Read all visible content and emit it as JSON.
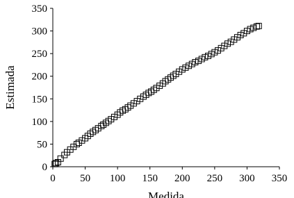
{
  "chart_data": {
    "type": "scatter",
    "x_label": "Medida",
    "y_label": "Estimada",
    "x": [
      3,
      5,
      8,
      12,
      18,
      22,
      27,
      32,
      37,
      40,
      45,
      50,
      54,
      58,
      62,
      66,
      70,
      75,
      78,
      82,
      86,
      90,
      95,
      100,
      104,
      108,
      112,
      116,
      120,
      125,
      130,
      135,
      140,
      144,
      148,
      152,
      156,
      160,
      165,
      170,
      174,
      178,
      182,
      186,
      190,
      195,
      200,
      205,
      210,
      215,
      220,
      225,
      230,
      235,
      240,
      245,
      250,
      255,
      260,
      265,
      270,
      275,
      280,
      285,
      290,
      295,
      300,
      305,
      310,
      315,
      318
    ],
    "values": [
      6,
      8,
      10,
      18,
      26,
      32,
      38,
      44,
      50,
      53,
      58,
      63,
      68,
      73,
      77,
      81,
      85,
      90,
      93,
      97,
      101,
      105,
      110,
      115,
      120,
      124,
      127,
      131,
      135,
      140,
      145,
      150,
      155,
      159,
      163,
      166,
      170,
      174,
      179,
      184,
      189,
      193,
      197,
      201,
      205,
      210,
      215,
      219,
      223,
      227,
      231,
      234,
      238,
      242,
      245,
      249,
      253,
      257,
      262,
      267,
      272,
      276,
      281,
      286,
      291,
      295,
      300,
      304,
      307,
      310,
      311
    ],
    "color": "#000000",
    "marker": "square",
    "xlim": [
      0,
      350
    ],
    "xticks": [
      0,
      50,
      100,
      150,
      200,
      250,
      300,
      350
    ],
    "ylim": [
      0,
      350
    ],
    "yticks": [
      0,
      50,
      100,
      150,
      200,
      250,
      300,
      350
    ],
    "grid": false
  }
}
